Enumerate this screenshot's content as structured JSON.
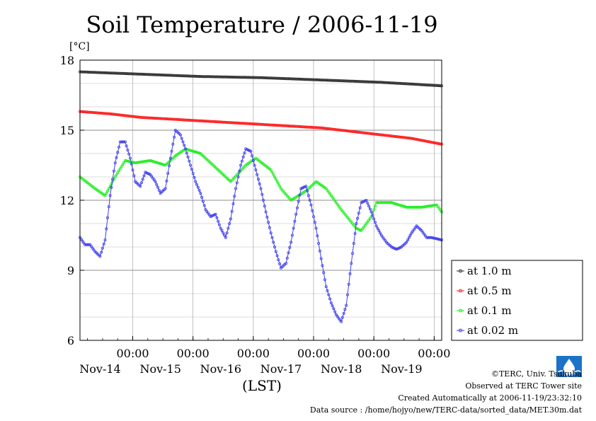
{
  "chart_data": {
    "type": "line",
    "title": "Soil Temperature / 2006-11-19",
    "ylabel": "[°C]",
    "xlabel": "(LST)",
    "ylim": [
      6,
      18
    ],
    "yticks": [
      6,
      9,
      12,
      15,
      18
    ],
    "xrange_hours": [
      0,
      144
    ],
    "time_tick_label": "00:00",
    "x_ticks": [
      {
        "hour": 21,
        "time": "00:00",
        "date": "Nov-14"
      },
      {
        "hour": 45,
        "time": "00:00",
        "date": "Nov-15"
      },
      {
        "hour": 69,
        "time": "00:00",
        "date": "Nov-16"
      },
      {
        "hour": 93,
        "time": "00:00",
        "date": "Nov-17"
      },
      {
        "hour": 117,
        "time": "00:00",
        "date": "Nov-18"
      },
      {
        "hour": 141,
        "time": "00:00",
        "date": "Nov-19"
      }
    ],
    "grid": true,
    "legend_position": "right",
    "series": [
      {
        "name": "at 1.0 m",
        "color": "#333333",
        "points": [
          [
            0,
            17.5
          ],
          [
            24,
            17.4
          ],
          [
            48,
            17.3
          ],
          [
            72,
            17.25
          ],
          [
            96,
            17.15
          ],
          [
            120,
            17.05
          ],
          [
            144,
            16.9
          ]
        ]
      },
      {
        "name": "at 0.5 m",
        "color": "#ff2020",
        "points": [
          [
            0,
            15.8
          ],
          [
            12,
            15.7
          ],
          [
            24,
            15.55
          ],
          [
            48,
            15.4
          ],
          [
            72,
            15.25
          ],
          [
            96,
            15.1
          ],
          [
            108,
            14.95
          ],
          [
            120,
            14.8
          ],
          [
            132,
            14.65
          ],
          [
            144,
            14.4
          ]
        ]
      },
      {
        "name": "at 0.1 m",
        "color": "#22ee22",
        "points": [
          [
            0,
            13.0
          ],
          [
            6,
            12.5
          ],
          [
            10,
            12.2
          ],
          [
            14,
            13.0
          ],
          [
            18,
            13.7
          ],
          [
            22,
            13.6
          ],
          [
            28,
            13.7
          ],
          [
            34,
            13.5
          ],
          [
            38,
            13.9
          ],
          [
            42,
            14.2
          ],
          [
            48,
            14.0
          ],
          [
            54,
            13.4
          ],
          [
            60,
            12.8
          ],
          [
            66,
            13.5
          ],
          [
            70,
            13.8
          ],
          [
            76,
            13.3
          ],
          [
            80,
            12.5
          ],
          [
            84,
            12.0
          ],
          [
            90,
            12.4
          ],
          [
            94,
            12.8
          ],
          [
            98,
            12.5
          ],
          [
            104,
            11.6
          ],
          [
            110,
            10.8
          ],
          [
            112,
            10.7
          ],
          [
            116,
            11.3
          ],
          [
            118,
            11.9
          ],
          [
            124,
            11.9
          ],
          [
            130,
            11.7
          ],
          [
            136,
            11.7
          ],
          [
            142,
            11.8
          ],
          [
            144,
            11.5
          ]
        ]
      },
      {
        "name": "at 0.02 m",
        "color": "#4040ee",
        "points": [
          [
            0,
            10.4
          ],
          [
            2,
            10.1
          ],
          [
            4,
            10.1
          ],
          [
            6,
            9.8
          ],
          [
            8,
            9.6
          ],
          [
            10,
            10.3
          ],
          [
            12,
            12.2
          ],
          [
            14,
            13.6
          ],
          [
            16,
            14.5
          ],
          [
            18,
            14.5
          ],
          [
            20,
            13.8
          ],
          [
            22,
            12.8
          ],
          [
            24,
            12.6
          ],
          [
            26,
            13.2
          ],
          [
            28,
            13.1
          ],
          [
            30,
            12.8
          ],
          [
            32,
            12.3
          ],
          [
            34,
            12.5
          ],
          [
            36,
            13.8
          ],
          [
            38,
            15.0
          ],
          [
            40,
            14.8
          ],
          [
            42,
            14.2
          ],
          [
            44,
            13.5
          ],
          [
            46,
            12.8
          ],
          [
            48,
            12.3
          ],
          [
            50,
            11.6
          ],
          [
            52,
            11.3
          ],
          [
            54,
            11.4
          ],
          [
            56,
            10.8
          ],
          [
            58,
            10.4
          ],
          [
            60,
            11.2
          ],
          [
            62,
            12.5
          ],
          [
            64,
            13.5
          ],
          [
            66,
            14.2
          ],
          [
            68,
            14.1
          ],
          [
            70,
            13.3
          ],
          [
            72,
            12.5
          ],
          [
            74,
            11.5
          ],
          [
            76,
            10.6
          ],
          [
            78,
            9.8
          ],
          [
            80,
            9.1
          ],
          [
            82,
            9.3
          ],
          [
            84,
            10.2
          ],
          [
            86,
            11.4
          ],
          [
            88,
            12.5
          ],
          [
            90,
            12.6
          ],
          [
            92,
            11.8
          ],
          [
            94,
            10.8
          ],
          [
            96,
            9.5
          ],
          [
            98,
            8.3
          ],
          [
            100,
            7.6
          ],
          [
            102,
            7.1
          ],
          [
            104,
            6.8
          ],
          [
            106,
            7.5
          ],
          [
            108,
            9.3
          ],
          [
            110,
            11.0
          ],
          [
            112,
            11.9
          ],
          [
            114,
            12.0
          ],
          [
            116,
            11.5
          ],
          [
            118,
            10.9
          ],
          [
            120,
            10.5
          ],
          [
            122,
            10.2
          ],
          [
            124,
            10.0
          ],
          [
            126,
            9.9
          ],
          [
            128,
            10.0
          ],
          [
            130,
            10.2
          ],
          [
            132,
            10.6
          ],
          [
            134,
            10.9
          ],
          [
            136,
            10.7
          ],
          [
            138,
            10.4
          ],
          [
            140,
            10.4
          ],
          [
            144,
            10.3
          ]
        ]
      }
    ]
  },
  "footer": {
    "line1": "©TERC, Univ. Tsukuba",
    "line2": "Observed at TERC Tower site",
    "line3": "Created Automatically at 2006-11-19/23:32:10",
    "line4": "Data source : /home/hojyo/new/TERC-data/sorted_data/MET.30m.dat"
  },
  "logo": {
    "text": "TERC",
    "color": "#1a73c8"
  }
}
